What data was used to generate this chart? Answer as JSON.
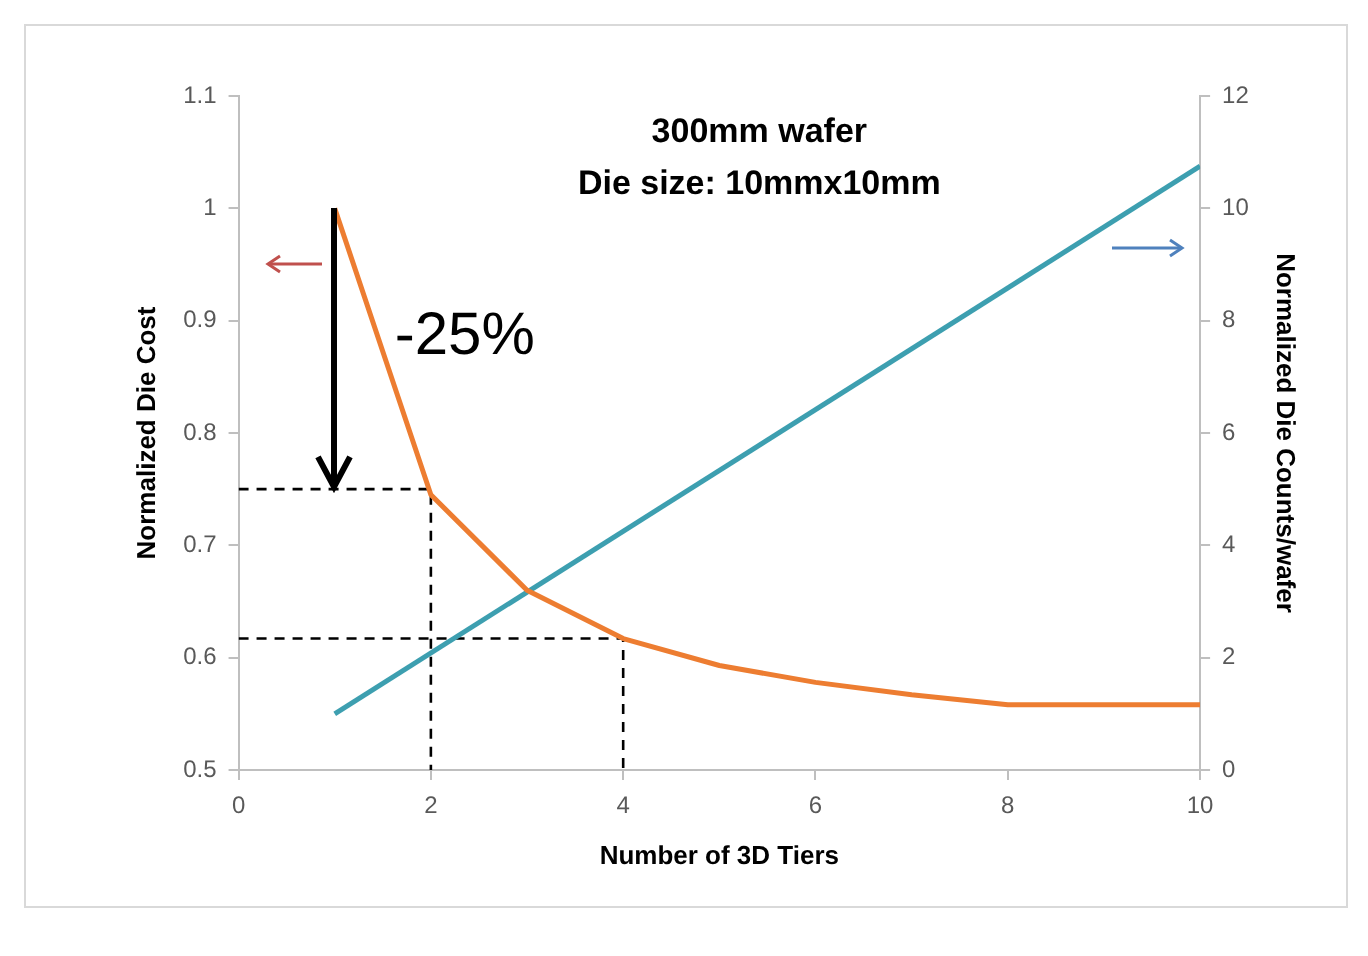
{
  "chart_data": {
    "type": "line",
    "title": "300mm wafer",
    "subtitle": "Die size: 10mmx10mm",
    "xlabel": "Number of 3D Tiers",
    "ylabel": "Normalized Die Cost",
    "y2label": "Normalized Die Counts/wafer",
    "series": [
      {
        "color": "#ed7d31",
        "x": [
          1,
          2,
          3,
          4,
          5,
          6,
          7,
          8,
          9,
          10
        ],
        "values": [
          1.0,
          0.745,
          0.66,
          0.617,
          0.593,
          0.578,
          0.567,
          0.558,
          0.558,
          0.558
        ]
      },
      {
        "color": "#3d9fb0",
        "axis": "y2",
        "x": [
          1,
          10
        ],
        "values": [
          1,
          10.75
        ]
      },
      {
        "color": "#000000",
        "line_style": "dashed",
        "x": [
          0,
          2,
          2
        ],
        "values": [
          0.75,
          0.75,
          0.5
        ]
      },
      {
        "color": "#000000",
        "line_style": "dashed",
        "x": [
          0,
          4,
          4
        ],
        "values": [
          0.617,
          0.617,
          0.5
        ]
      }
    ],
    "annotations": [
      "-25%"
    ],
    "xlim": [
      0,
      10
    ],
    "xticks": [
      0,
      2,
      4,
      6,
      8,
      10
    ],
    "ylim": [
      0.5,
      1.1
    ],
    "yticks": [
      0.5,
      0.6,
      0.7,
      0.8,
      0.9,
      1,
      1.1
    ],
    "y2lim": [
      0,
      12
    ],
    "y2ticks": [
      0,
      2,
      4,
      6,
      8,
      10,
      12
    ],
    "grid": false,
    "legend": false,
    "marker": "none",
    "line_style": "solid"
  }
}
